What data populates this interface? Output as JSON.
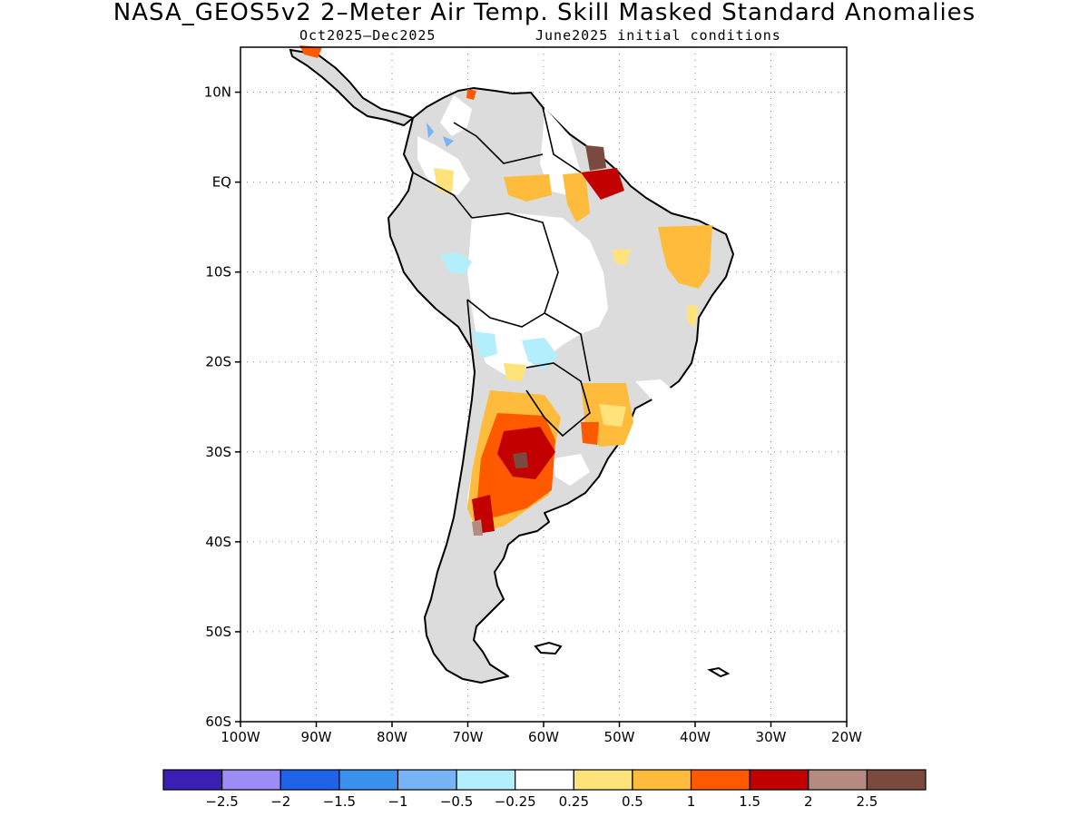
{
  "title": "NASA_GEOS5v2 2–Meter Air Temp. Skill Masked Standard Anomalies",
  "subtitle_left": "Oct2025–Dec2025",
  "subtitle_right": "June2025 initial conditions",
  "map": {
    "region": "South America",
    "lon_range": [
      -100,
      -20
    ],
    "lat_range": [
      -60,
      15
    ],
    "lat_ticks": [
      {
        "value": 10,
        "label": "10N"
      },
      {
        "value": 0,
        "label": "EQ"
      },
      {
        "value": -10,
        "label": "10S"
      },
      {
        "value": -20,
        "label": "20S"
      },
      {
        "value": -30,
        "label": "30S"
      },
      {
        "value": -40,
        "label": "40S"
      },
      {
        "value": -50,
        "label": "50S"
      },
      {
        "value": -60,
        "label": "60S"
      }
    ],
    "lon_ticks": [
      {
        "value": -100,
        "label": "100W"
      },
      {
        "value": -90,
        "label": "90W"
      },
      {
        "value": -80,
        "label": "80W"
      },
      {
        "value": -70,
        "label": "70W"
      },
      {
        "value": -60,
        "label": "60W"
      },
      {
        "value": -50,
        "label": "50W"
      },
      {
        "value": -40,
        "label": "40W"
      },
      {
        "value": -30,
        "label": "30W"
      },
      {
        "value": -20,
        "label": "20W"
      }
    ],
    "grid": "dotted",
    "masked_color": "#dcdcdc",
    "land_outline_color": "#000000"
  },
  "colorbar": {
    "colors": [
      "#3a1fb5",
      "#9c8cf6",
      "#1f63e8",
      "#3a92ee",
      "#76b4f6",
      "#b2eefb",
      "#ffffff",
      "#ffe27a",
      "#ffbb3b",
      "#ff5a00",
      "#c20000",
      "#b58a80",
      "#7b4a3e"
    ],
    "tick_labels": [
      "−2.5",
      "−2",
      "−1.5",
      "−1",
      "−0.5",
      "−0.25",
      "0.25",
      "0.5",
      "1",
      "1.5",
      "2",
      "2.5"
    ]
  }
}
